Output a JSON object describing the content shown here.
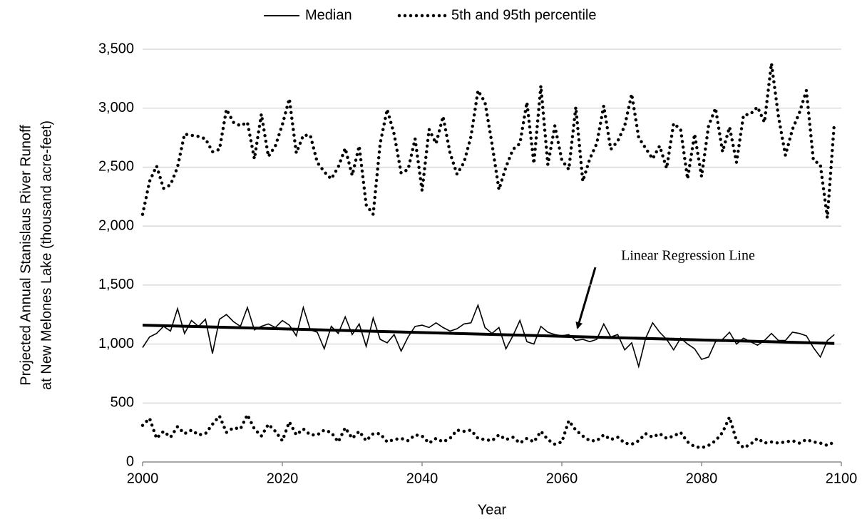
{
  "chart_data": {
    "type": "line",
    "xlabel": "Year",
    "ylabel": [
      "Projected Annual Stanislaus River Runoff",
      "at New Melones Lake (thousand acre-feet)"
    ],
    "xlim": [
      2000,
      2100
    ],
    "xticks": [
      2000,
      2020,
      2040,
      2060,
      2080,
      2100
    ],
    "ylim": [
      0,
      3500
    ],
    "yticks": [
      0,
      500,
      {
        "value": 1000,
        "label": "1,000"
      },
      {
        "value": 1500,
        "label": "1,500"
      },
      {
        "value": 2000,
        "label": "2,000"
      },
      {
        "value": 2500,
        "label": "2,500"
      },
      {
        "value": 3000,
        "label": "3,000"
      },
      {
        "value": 3500,
        "label": "3,500"
      }
    ],
    "grid": true,
    "x": [
      2000,
      2001,
      2002,
      2003,
      2004,
      2005,
      2006,
      2007,
      2008,
      2009,
      2010,
      2011,
      2012,
      2013,
      2014,
      2015,
      2016,
      2017,
      2018,
      2019,
      2020,
      2021,
      2022,
      2023,
      2024,
      2025,
      2026,
      2027,
      2028,
      2029,
      2030,
      2031,
      2032,
      2033,
      2034,
      2035,
      2036,
      2037,
      2038,
      2039,
      2040,
      2041,
      2042,
      2043,
      2044,
      2045,
      2046,
      2047,
      2048,
      2049,
      2050,
      2051,
      2052,
      2053,
      2054,
      2055,
      2056,
      2057,
      2058,
      2059,
      2060,
      2061,
      2062,
      2063,
      2064,
      2065,
      2066,
      2067,
      2068,
      2069,
      2070,
      2071,
      2072,
      2073,
      2074,
      2075,
      2076,
      2077,
      2078,
      2079,
      2080,
      2081,
      2082,
      2083,
      2084,
      2085,
      2086,
      2087,
      2088,
      2089,
      2090,
      2091,
      2092,
      2093,
      2094,
      2095,
      2096,
      2097,
      2098,
      2099
    ],
    "series": [
      {
        "name": "Median",
        "color": "#000000",
        "style": "solid",
        "values": [
          970,
          1060,
          1090,
          1150,
          1110,
          1300,
          1090,
          1200,
          1150,
          1210,
          920,
          1210,
          1250,
          1190,
          1150,
          1310,
          1120,
          1150,
          1170,
          1140,
          1200,
          1160,
          1070,
          1310,
          1120,
          1100,
          960,
          1150,
          1090,
          1230,
          1080,
          1170,
          980,
          1220,
          1040,
          1010,
          1080,
          940,
          1060,
          1150,
          1160,
          1140,
          1180,
          1140,
          1110,
          1130,
          1170,
          1180,
          1330,
          1140,
          1090,
          1140,
          960,
          1070,
          1200,
          1020,
          1000,
          1150,
          1100,
          1080,
          1070,
          1080,
          1030,
          1040,
          1020,
          1040,
          1170,
          1060,
          1080,
          950,
          1010,
          810,
          1050,
          1180,
          1100,
          1040,
          950,
          1050,
          1000,
          960,
          870,
          890,
          1020,
          1040,
          1100,
          1000,
          1050,
          1020,
          990,
          1030,
          1090,
          1030,
          1030,
          1100,
          1090,
          1070,
          970,
          890,
          1030,
          1080
        ]
      },
      {
        "name": "5th and 95th percentile",
        "color": "#000000",
        "style": "dotted",
        "upper": [
          2100,
          2380,
          2510,
          2320,
          2350,
          2500,
          2780,
          2770,
          2760,
          2740,
          2630,
          2650,
          2990,
          2880,
          2850,
          2880,
          2570,
          2950,
          2590,
          2680,
          2860,
          3080,
          2620,
          2770,
          2770,
          2540,
          2460,
          2400,
          2500,
          2660,
          2430,
          2680,
          2180,
          2100,
          2700,
          2990,
          2780,
          2450,
          2480,
          2740,
          2300,
          2820,
          2700,
          2930,
          2620,
          2440,
          2540,
          2760,
          3150,
          3050,
          2700,
          2310,
          2500,
          2650,
          2700,
          3050,
          2530,
          3190,
          2520,
          2850,
          2560,
          2480,
          3010,
          2380,
          2570,
          2700,
          3020,
          2650,
          2720,
          2850,
          3120,
          2750,
          2660,
          2570,
          2680,
          2490,
          2870,
          2820,
          2400,
          2780,
          2420,
          2850,
          3000,
          2630,
          2840,
          2540,
          2940,
          2950,
          3010,
          2880,
          3380,
          2930,
          2600,
          2820,
          2960,
          3150,
          2560,
          2520,
          2070,
          2880
        ],
        "lower": [
          310,
          370,
          200,
          260,
          210,
          300,
          240,
          270,
          230,
          240,
          320,
          390,
          250,
          290,
          280,
          400,
          280,
          220,
          320,
          260,
          180,
          340,
          230,
          280,
          230,
          230,
          270,
          250,
          170,
          290,
          200,
          260,
          180,
          240,
          240,
          170,
          190,
          200,
          180,
          230,
          220,
          160,
          200,
          170,
          200,
          270,
          260,
          270,
          200,
          190,
          180,
          230,
          190,
          210,
          160,
          200,
          170,
          260,
          190,
          150,
          170,
          350,
          270,
          220,
          180,
          180,
          230,
          190,
          210,
          160,
          150,
          180,
          240,
          210,
          240,
          200,
          220,
          250,
          170,
          130,
          120,
          140,
          180,
          250,
          380,
          180,
          120,
          150,
          200,
          160,
          170,
          160,
          170,
          180,
          160,
          190,
          170,
          160,
          140,
          170
        ]
      }
    ],
    "regression": {
      "text": "Linear Regression Line",
      "x": [
        2000,
        2099
      ],
      "values": [
        1160,
        1005
      ],
      "color": "#000000"
    }
  }
}
